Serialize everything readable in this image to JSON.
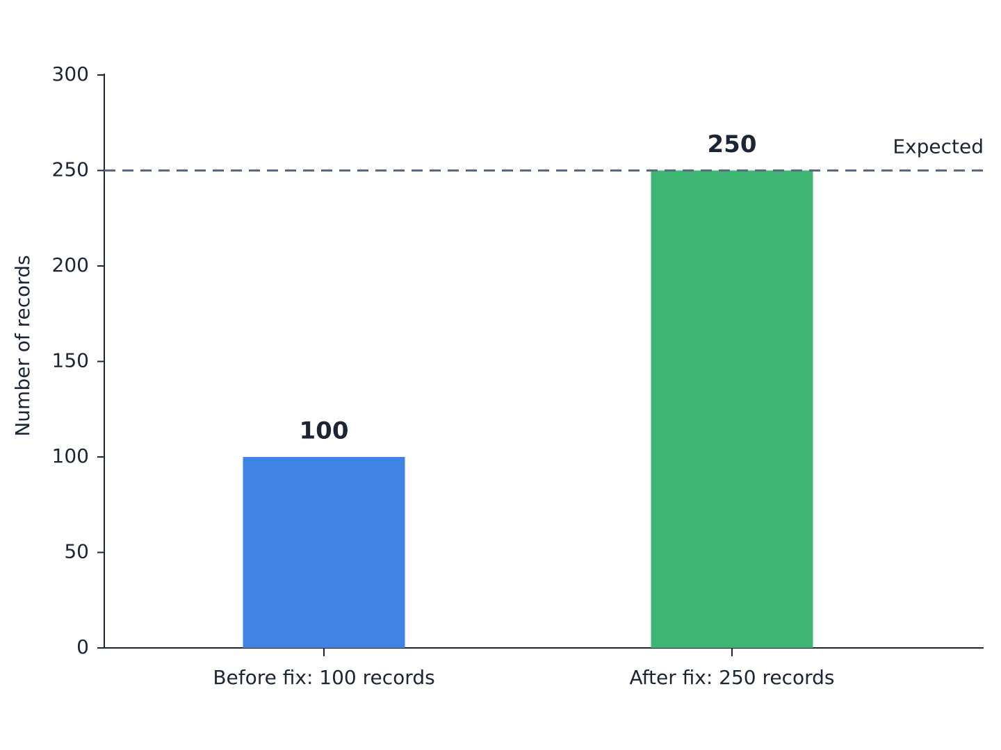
{
  "chart_data": {
    "type": "bar",
    "categories": [
      "Before fix: 100 records",
      "After fix: 250 records"
    ],
    "values": [
      100,
      250
    ],
    "colors": [
      "#3f84e5",
      "#3fb573"
    ],
    "y_label": "Number of records",
    "ylim": [
      0,
      300
    ],
    "yticks": [
      0,
      50,
      100,
      150,
      200,
      250,
      300
    ],
    "reference_line": {
      "value": 250,
      "label": "Expected",
      "color": "#5a6b80"
    },
    "grid": false
  }
}
